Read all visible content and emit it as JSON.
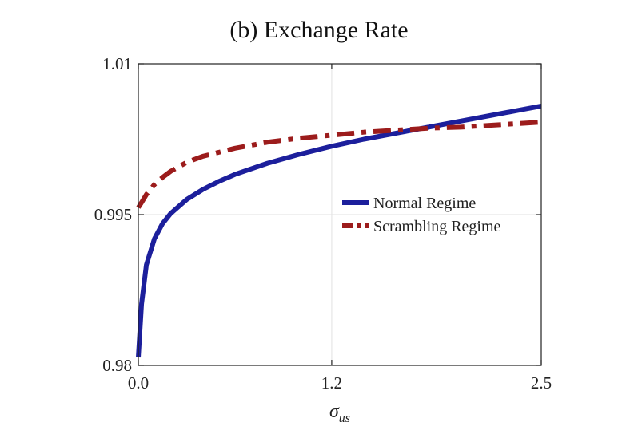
{
  "chart_data": {
    "type": "line",
    "title": "(b) Exchange Rate",
    "xlabel": "σ",
    "xlabel_subscript": "us",
    "ylabel": "",
    "xlim": [
      0.0,
      2.5
    ],
    "ylim": [
      0.98,
      1.01
    ],
    "xticks": [
      0.0,
      1.2,
      2.5
    ],
    "xtick_labels": [
      "0.0",
      "1.2",
      "2.5"
    ],
    "yticks": [
      0.98,
      0.995,
      1.01
    ],
    "ytick_labels": [
      "0.98",
      "0.995",
      "1.01"
    ],
    "grid": true,
    "legend_position": "right-middle",
    "series": [
      {
        "name": "Normal Regime",
        "color": "#1c1f9c",
        "style": "solid",
        "x": [
          0.0,
          0.02,
          0.05,
          0.1,
          0.15,
          0.2,
          0.3,
          0.4,
          0.5,
          0.6,
          0.8,
          1.0,
          1.2,
          1.4,
          1.6,
          1.8,
          2.0,
          2.2,
          2.4,
          2.5
        ],
        "y": [
          0.9808,
          0.9861,
          0.99,
          0.9926,
          0.9941,
          0.9951,
          0.9965,
          0.9975,
          0.9983,
          0.999,
          1.0001,
          1.001,
          1.0018,
          1.0025,
          1.0031,
          1.0037,
          1.0043,
          1.0049,
          1.0055,
          1.0058
        ]
      },
      {
        "name": "Scrambling Regime",
        "color": "#9c1c1c",
        "style": "dashdot",
        "x": [
          0.0,
          0.02,
          0.05,
          0.1,
          0.15,
          0.2,
          0.3,
          0.4,
          0.5,
          0.6,
          0.8,
          1.0,
          1.2,
          1.4,
          1.6,
          1.8,
          2.0,
          2.2,
          2.4,
          2.5
        ],
        "y": [
          0.9957,
          0.9962,
          0.997,
          0.998,
          0.9987,
          0.9993,
          1.0002,
          1.0008,
          1.0012,
          1.0016,
          1.0022,
          1.0026,
          1.0029,
          1.0032,
          1.0034,
          1.0036,
          1.0037,
          1.0039,
          1.0041,
          1.0042
        ]
      }
    ]
  }
}
